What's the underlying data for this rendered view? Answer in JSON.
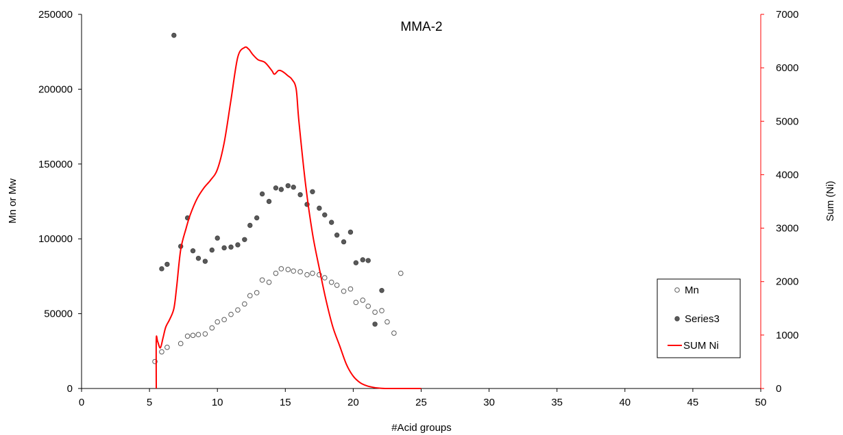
{
  "chart_data": {
    "type": "scatter",
    "title": "MMA-2",
    "xlabel": "#Acid groups",
    "ylabel": "Mn or Mw",
    "y2label": "Sum (Ni)",
    "xlim": [
      0,
      50
    ],
    "ylim": [
      0,
      250000
    ],
    "y2lim": [
      0,
      7000
    ],
    "x_ticks": [
      0,
      5,
      10,
      15,
      20,
      25,
      30,
      35,
      40,
      45,
      50
    ],
    "y_ticks": [
      0,
      50000,
      100000,
      150000,
      200000,
      250000
    ],
    "y2_ticks": [
      0,
      1000,
      2000,
      3000,
      4000,
      5000,
      6000,
      7000
    ],
    "grid": false,
    "legend_position": "bottom-right",
    "colors": {
      "mn_marker_edge": "#595959",
      "series3_marker_fill": "#595959",
      "sum_ni_line": "#ff0000",
      "secondary_axis": "#ff0000",
      "primary_axis": "#000000"
    },
    "series": [
      {
        "name": "Mn",
        "type": "scatter",
        "axis": "left",
        "marker": "open-circle",
        "x": [
          5.4,
          5.9,
          6.3,
          7.3,
          7.8,
          8.2,
          8.6,
          9.1,
          9.6,
          10.0,
          10.5,
          11.0,
          11.5,
          12.0,
          12.4,
          12.9,
          13.3,
          13.8,
          14.3,
          14.7,
          15.2,
          15.6,
          16.1,
          16.6,
          17.0,
          17.5,
          17.9,
          18.4,
          18.8,
          19.3,
          19.8,
          20.2,
          20.7,
          21.1,
          21.6,
          22.1,
          22.5,
          23.0,
          23.5
        ],
        "y": [
          18000,
          24500,
          27500,
          30000,
          35000,
          35500,
          36000,
          36500,
          40500,
          44500,
          46000,
          49500,
          52500,
          56500,
          62000,
          64000,
          72500,
          71000,
          77000,
          80000,
          79500,
          78500,
          78000,
          76000,
          77000,
          76000,
          74000,
          71000,
          69000,
          65000,
          66500,
          57500,
          59000,
          55000,
          51000,
          52000,
          44500,
          37000,
          77000
        ]
      },
      {
        "name": "Series3",
        "type": "scatter",
        "axis": "left",
        "marker": "filled-circle",
        "x": [
          5.9,
          6.3,
          6.8,
          7.3,
          7.8,
          8.2,
          8.6,
          9.1,
          9.6,
          10.0,
          10.5,
          11.0,
          11.5,
          12.0,
          12.4,
          12.9,
          13.3,
          13.8,
          14.3,
          14.7,
          15.2,
          15.6,
          16.1,
          16.6,
          17.0,
          17.5,
          17.9,
          18.4,
          18.8,
          19.3,
          19.8,
          20.2,
          20.7,
          21.1,
          21.6,
          22.1
        ],
        "y": [
          80000,
          83000,
          236000,
          95000,
          114000,
          92000,
          87000,
          85000,
          92500,
          100500,
          94000,
          94500,
          96000,
          99500,
          109000,
          114000,
          130000,
          125000,
          134000,
          133000,
          135500,
          134500,
          129500,
          123000,
          131500,
          120500,
          116000,
          111000,
          102500,
          98000,
          104500,
          84000,
          86000,
          85500,
          43000,
          65500
        ]
      },
      {
        "name": "SUM Ni",
        "type": "line",
        "axis": "right",
        "x": [
          5.5,
          5.5,
          5.6,
          5.8,
          6.0,
          6.2,
          6.5,
          6.8,
          7.0,
          7.3,
          7.7,
          8.0,
          8.5,
          9.0,
          9.5,
          10.0,
          10.5,
          11.0,
          11.5,
          12.0,
          12.3,
          12.6,
          13.0,
          13.5,
          14.0,
          14.2,
          14.5,
          14.8,
          15.2,
          15.5,
          15.8,
          16.0,
          16.5,
          17.0,
          17.5,
          18.0,
          18.5,
          19.0,
          19.5,
          20.0,
          20.5,
          21.0,
          21.5,
          22.0,
          22.5,
          23.0,
          24.0,
          25.0
        ],
        "y": [
          0,
          920,
          880,
          760,
          950,
          1150,
          1300,
          1500,
          1900,
          2600,
          3000,
          3250,
          3550,
          3750,
          3900,
          4100,
          4600,
          5400,
          6200,
          6380,
          6350,
          6250,
          6150,
          6100,
          5950,
          5880,
          5950,
          5930,
          5850,
          5780,
          5600,
          5000,
          3800,
          2900,
          2250,
          1650,
          1150,
          800,
          450,
          230,
          110,
          50,
          20,
          5,
          0,
          0,
          0,
          0
        ]
      }
    ]
  }
}
